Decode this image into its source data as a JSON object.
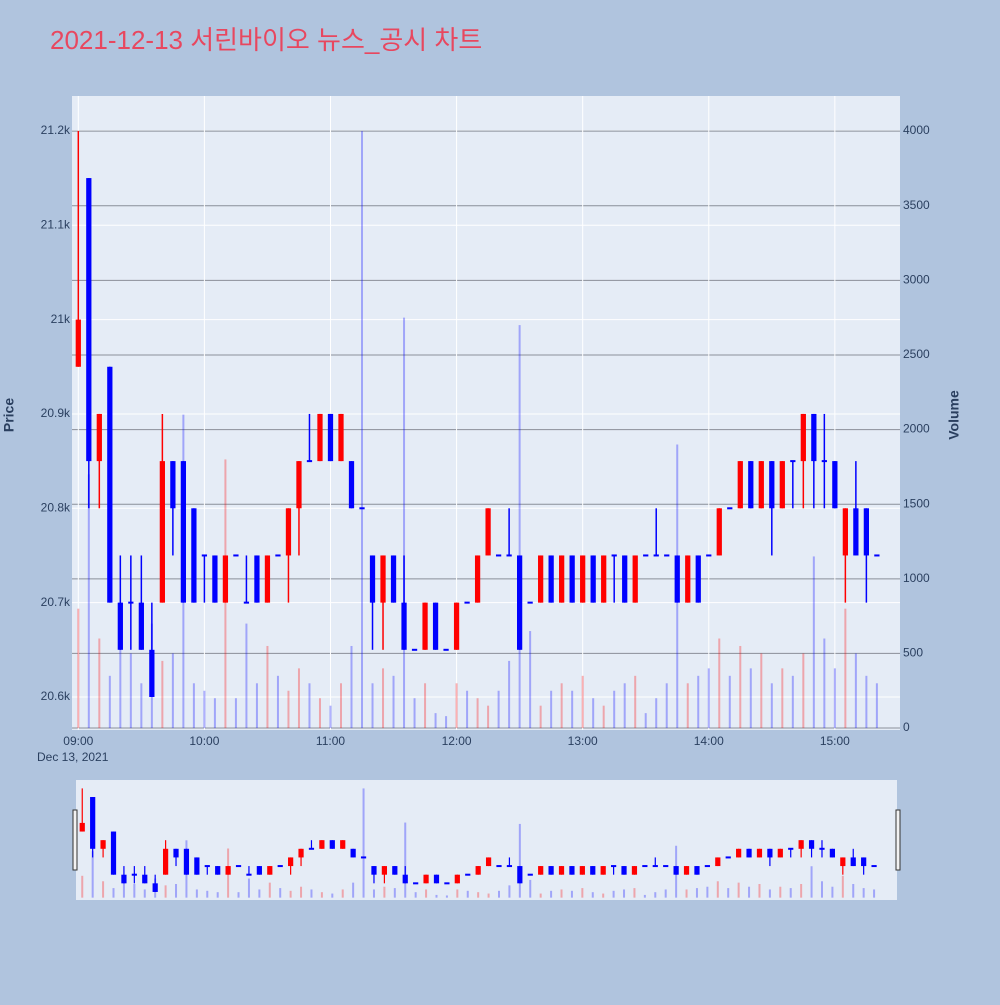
{
  "chart_data": {
    "type": "candlestick",
    "title": "2021-12-13 서린바이오 뉴스_공시 차트",
    "yaxis_title": "Price",
    "y2axis_title": "Volume",
    "x_date_label": "Dec 13, 2021",
    "increasing_color": "#ff0000",
    "decreasing_color": "#0000ff",
    "grid": true,
    "x": [
      "2021-12-13 09:00",
      "2021-12-13 09:05",
      "2021-12-13 09:10",
      "2021-12-13 09:15",
      "2021-12-13 09:20",
      "2021-12-13 09:25",
      "2021-12-13 09:30",
      "2021-12-13 09:35",
      "2021-12-13 09:40",
      "2021-12-13 09:45",
      "2021-12-13 09:50",
      "2021-12-13 09:55",
      "2021-12-13 10:00",
      "2021-12-13 10:05",
      "2021-12-13 10:10",
      "2021-12-13 10:15",
      "2021-12-13 10:20",
      "2021-12-13 10:25",
      "2021-12-13 10:30",
      "2021-12-13 10:35",
      "2021-12-13 10:40",
      "2021-12-13 10:45",
      "2021-12-13 10:50",
      "2021-12-13 10:55",
      "2021-12-13 11:00",
      "2021-12-13 11:05",
      "2021-12-13 11:10",
      "2021-12-13 11:15",
      "2021-12-13 11:20",
      "2021-12-13 11:25",
      "2021-12-13 11:30",
      "2021-12-13 11:35",
      "2021-12-13 11:40",
      "2021-12-13 11:45",
      "2021-12-13 11:50",
      "2021-12-13 11:55",
      "2021-12-13 12:00",
      "2021-12-13 12:05",
      "2021-12-13 12:10",
      "2021-12-13 12:15",
      "2021-12-13 12:20",
      "2021-12-13 12:25",
      "2021-12-13 12:30",
      "2021-12-13 12:35",
      "2021-12-13 12:40",
      "2021-12-13 12:45",
      "2021-12-13 12:50",
      "2021-12-13 12:55",
      "2021-12-13 13:00",
      "2021-12-13 13:05",
      "2021-12-13 13:10",
      "2021-12-13 13:15",
      "2021-12-13 13:20",
      "2021-12-13 13:25",
      "2021-12-13 13:30",
      "2021-12-13 13:35",
      "2021-12-13 13:40",
      "2021-12-13 13:45",
      "2021-12-13 13:50",
      "2021-12-13 13:55",
      "2021-12-13 14:00",
      "2021-12-13 14:05",
      "2021-12-13 14:10",
      "2021-12-13 14:15",
      "2021-12-13 14:20",
      "2021-12-13 14:25",
      "2021-12-13 14:30",
      "2021-12-13 14:35",
      "2021-12-13 14:40",
      "2021-12-13 14:45",
      "2021-12-13 14:50",
      "2021-12-13 14:55",
      "2021-12-13 15:00",
      "2021-12-13 15:05",
      "2021-12-13 15:10",
      "2021-12-13 15:15",
      "2021-12-13 15:20"
    ],
    "open": [
      20950,
      21150,
      20850,
      20950,
      20700,
      20700,
      20700,
      20650,
      20700,
      20850,
      20850,
      20800,
      20750,
      20750,
      20700,
      20750,
      20700,
      20750,
      20700,
      20750,
      20750,
      20800,
      20850,
      20850,
      20900,
      20850,
      20850,
      20800,
      20750,
      20700,
      20750,
      20700,
      20650,
      20650,
      20700,
      20650,
      20650,
      20700,
      20700,
      20750,
      20750,
      20750,
      20750,
      20700,
      20700,
      20750,
      20700,
      20750,
      20700,
      20750,
      20700,
      20750,
      20750,
      20700,
      20750,
      20750,
      20750,
      20750,
      20700,
      20750,
      20750,
      20750,
      20800,
      20800,
      20850,
      20800,
      20850,
      20800,
      20850,
      20850,
      20900,
      20850,
      20850,
      20750,
      20800,
      20800,
      20750
    ],
    "high": [
      21200,
      21150,
      20900,
      20950,
      20750,
      20750,
      20750,
      20700,
      20900,
      20850,
      20850,
      20800,
      20750,
      20750,
      20750,
      20750,
      20750,
      20750,
      20750,
      20750,
      20800,
      20850,
      20900,
      20900,
      20900,
      20900,
      20850,
      20800,
      20750,
      20750,
      20750,
      20750,
      20650,
      20700,
      20700,
      20650,
      20700,
      20700,
      20750,
      20800,
      20750,
      20800,
      20750,
      20700,
      20750,
      20750,
      20750,
      20750,
      20750,
      20750,
      20750,
      20750,
      20750,
      20750,
      20750,
      20800,
      20750,
      20750,
      20750,
      20750,
      20750,
      20800,
      20800,
      20850,
      20850,
      20850,
      20850,
      20850,
      20850,
      20900,
      20900,
      20900,
      20850,
      20800,
      20850,
      20800,
      20750
    ],
    "low": [
      20950,
      20800,
      20800,
      20700,
      20650,
      20650,
      20650,
      20600,
      20700,
      20750,
      20700,
      20700,
      20700,
      20700,
      20700,
      20750,
      20700,
      20700,
      20700,
      20750,
      20700,
      20750,
      20850,
      20850,
      20850,
      20850,
      20800,
      20800,
      20650,
      20650,
      20700,
      20650,
      20650,
      20650,
      20650,
      20650,
      20650,
      20700,
      20700,
      20750,
      20750,
      20750,
      20650,
      20700,
      20700,
      20700,
      20700,
      20700,
      20700,
      20700,
      20700,
      20700,
      20700,
      20700,
      20750,
      20750,
      20750,
      20700,
      20700,
      20700,
      20750,
      20750,
      20800,
      20800,
      20800,
      20800,
      20750,
      20800,
      20800,
      20800,
      20800,
      20800,
      20800,
      20700,
      20750,
      20700,
      20750
    ],
    "close": [
      21000,
      20850,
      20900,
      20700,
      20650,
      20700,
      20650,
      20600,
      20850,
      20800,
      20700,
      20700,
      20750,
      20700,
      20750,
      20750,
      20700,
      20700,
      20750,
      20750,
      20800,
      20850,
      20850,
      20900,
      20850,
      20900,
      20800,
      20800,
      20700,
      20750,
      20700,
      20650,
      20650,
      20700,
      20650,
      20650,
      20700,
      20700,
      20750,
      20800,
      20750,
      20750,
      20650,
      20700,
      20750,
      20700,
      20750,
      20700,
      20750,
      20700,
      20750,
      20750,
      20700,
      20750,
      20750,
      20750,
      20750,
      20700,
      20750,
      20700,
      20750,
      20800,
      20800,
      20850,
      20800,
      20850,
      20800,
      20850,
      20850,
      20900,
      20850,
      20850,
      20800,
      20800,
      20750,
      20750,
      20750
    ],
    "volume": [
      800,
      1700,
      600,
      350,
      700,
      500,
      300,
      700,
      450,
      500,
      2100,
      300,
      250,
      200,
      1800,
      200,
      700,
      300,
      550,
      350,
      250,
      400,
      300,
      200,
      150,
      300,
      550,
      4000,
      300,
      400,
      350,
      2750,
      200,
      300,
      100,
      80,
      300,
      250,
      200,
      150,
      250,
      450,
      2700,
      650,
      150,
      250,
      300,
      250,
      350,
      200,
      150,
      250,
      300,
      350,
      100,
      200,
      300,
      1900,
      300,
      350,
      400,
      600,
      350,
      550,
      400,
      500,
      300,
      400,
      350,
      500,
      1150,
      600,
      400,
      800,
      500,
      350,
      300
    ],
    "xlim": [
      "2021-12-13 08:57",
      "2021-12-13 15:31"
    ],
    "xticks": [
      {
        "value": "2021-12-13 09:00",
        "label": "09:00"
      },
      {
        "value": "2021-12-13 10:00",
        "label": "10:00"
      },
      {
        "value": "2021-12-13 11:00",
        "label": "11:00"
      },
      {
        "value": "2021-12-13 12:00",
        "label": "12:00"
      },
      {
        "value": "2021-12-13 13:00",
        "label": "13:00"
      },
      {
        "value": "2021-12-13 14:00",
        "label": "14:00"
      },
      {
        "value": "2021-12-13 15:00",
        "label": "15:00"
      }
    ],
    "ylim": [
      20565,
      21237
    ],
    "yticks": [
      {
        "value": 20600,
        "label": "20.6k"
      },
      {
        "value": 20700,
        "label": "20.7k"
      },
      {
        "value": 20800,
        "label": "20.8k"
      },
      {
        "value": 20900,
        "label": "20.9k"
      },
      {
        "value": 21000,
        "label": "21k"
      },
      {
        "value": 21100,
        "label": "21.1k"
      },
      {
        "value": 21200,
        "label": "21.2k"
      }
    ],
    "y2lim": [
      -13,
      4235
    ],
    "y2ticks": [
      0,
      500,
      1000,
      1500,
      2000,
      2500,
      3000,
      3500,
      4000
    ]
  }
}
